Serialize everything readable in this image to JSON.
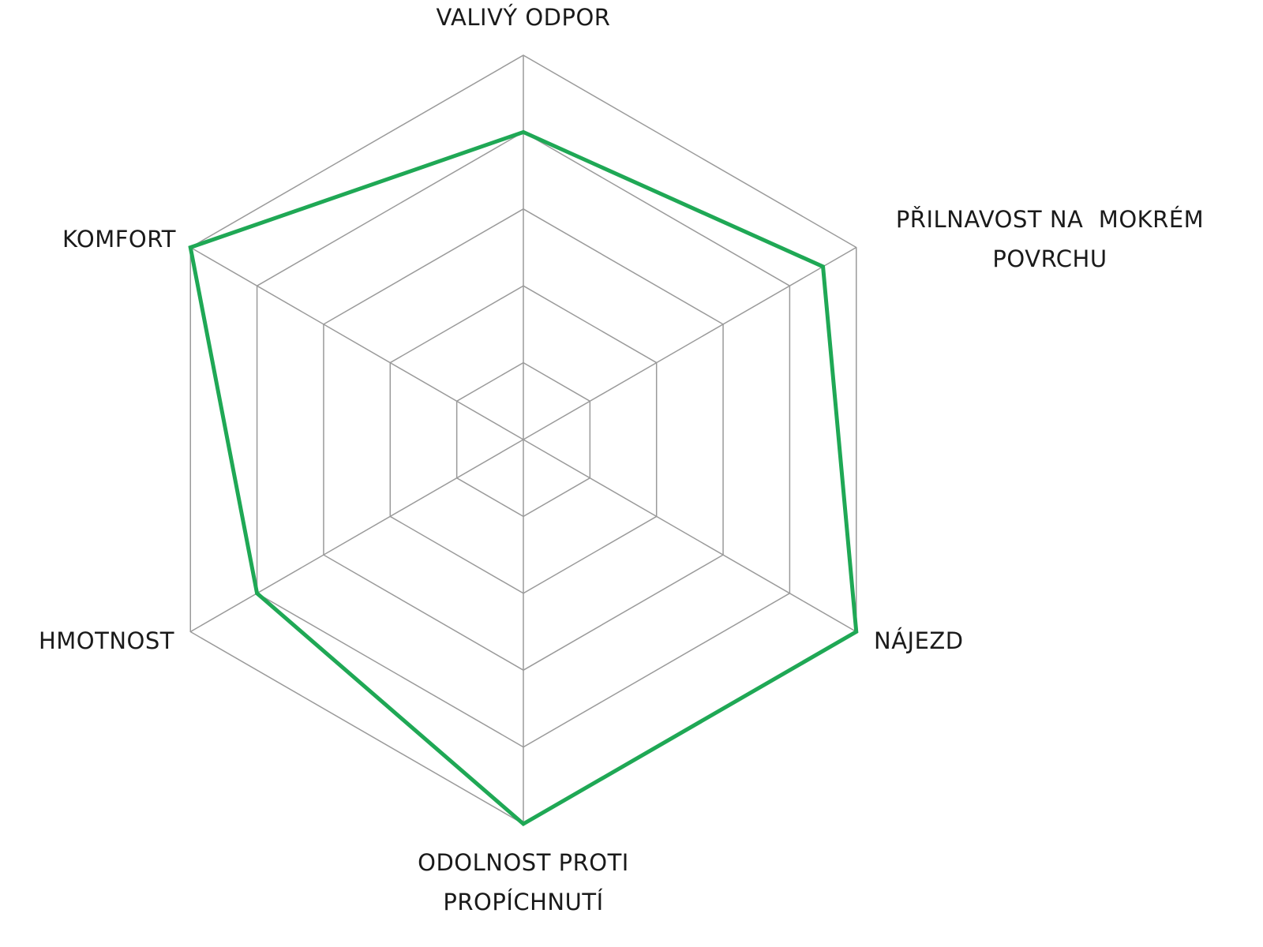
{
  "chart_data": {
    "type": "radar",
    "categories": [
      "VALIVÝ ODPOR",
      "PŘILNAVOST NA  MOKRÉM POVRCHU",
      "NÁJEZD",
      "ODOLNOST PROTI PROPÍCHNUTÍ",
      "HMOTNOST",
      "KOMFORT"
    ],
    "values": [
      4,
      4.5,
      5,
      5,
      4,
      5
    ],
    "color": "#1fa855",
    "ylim": [
      0,
      5
    ],
    "yticks": [
      0,
      1,
      2,
      3,
      4,
      5
    ],
    "grid": true,
    "show_tick_labels": false
  }
}
